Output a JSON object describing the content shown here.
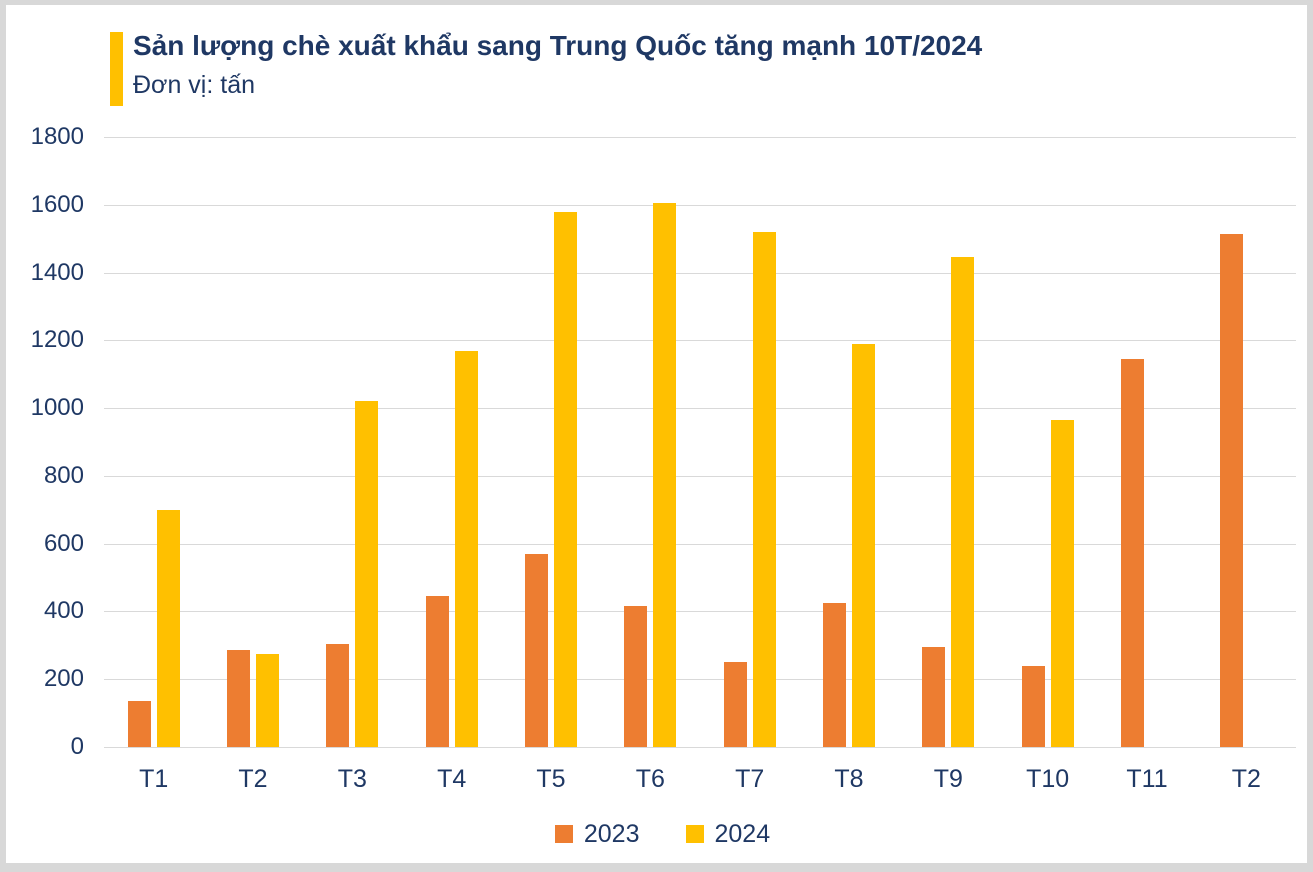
{
  "header": {
    "title": "Sản lượng chè xuất khẩu sang Trung Quốc tăng mạnh 10T/2024",
    "subtitle": "Đơn vị: tấn"
  },
  "colors": {
    "accent": "#FFC000",
    "series_2023": "#ED7D31",
    "series_2024": "#FFC000",
    "text_navy": "#1F3864",
    "gridline": "#D9D9D9"
  },
  "chart_data": {
    "type": "bar",
    "title": "Sản lượng chè xuất khẩu sang Trung Quốc tăng mạnh 10T/2024",
    "unit_label": "Đơn vị: tấn",
    "categories": [
      "T1",
      "T2",
      "T3",
      "T4",
      "T5",
      "T6",
      "T7",
      "T8",
      "T9",
      "T10",
      "T11",
      "T2"
    ],
    "series": [
      {
        "name": "2023",
        "color": "#ED7D31",
        "values": [
          135,
          285,
          305,
          445,
          570,
          415,
          250,
          425,
          295,
          240,
          1145,
          1515
        ]
      },
      {
        "name": "2024",
        "color": "#FFC000",
        "values": [
          700,
          275,
          1020,
          1170,
          1580,
          1605,
          1520,
          1190,
          1445,
          965,
          null,
          null
        ]
      }
    ],
    "xlabel": "",
    "ylabel": "tấn",
    "ylim": [
      0,
      1800
    ],
    "ytick_step": 200,
    "yticks": [
      0,
      200,
      400,
      600,
      800,
      1000,
      1200,
      1400,
      1600,
      1800
    ],
    "grid": true,
    "legend_position": "bottom"
  }
}
